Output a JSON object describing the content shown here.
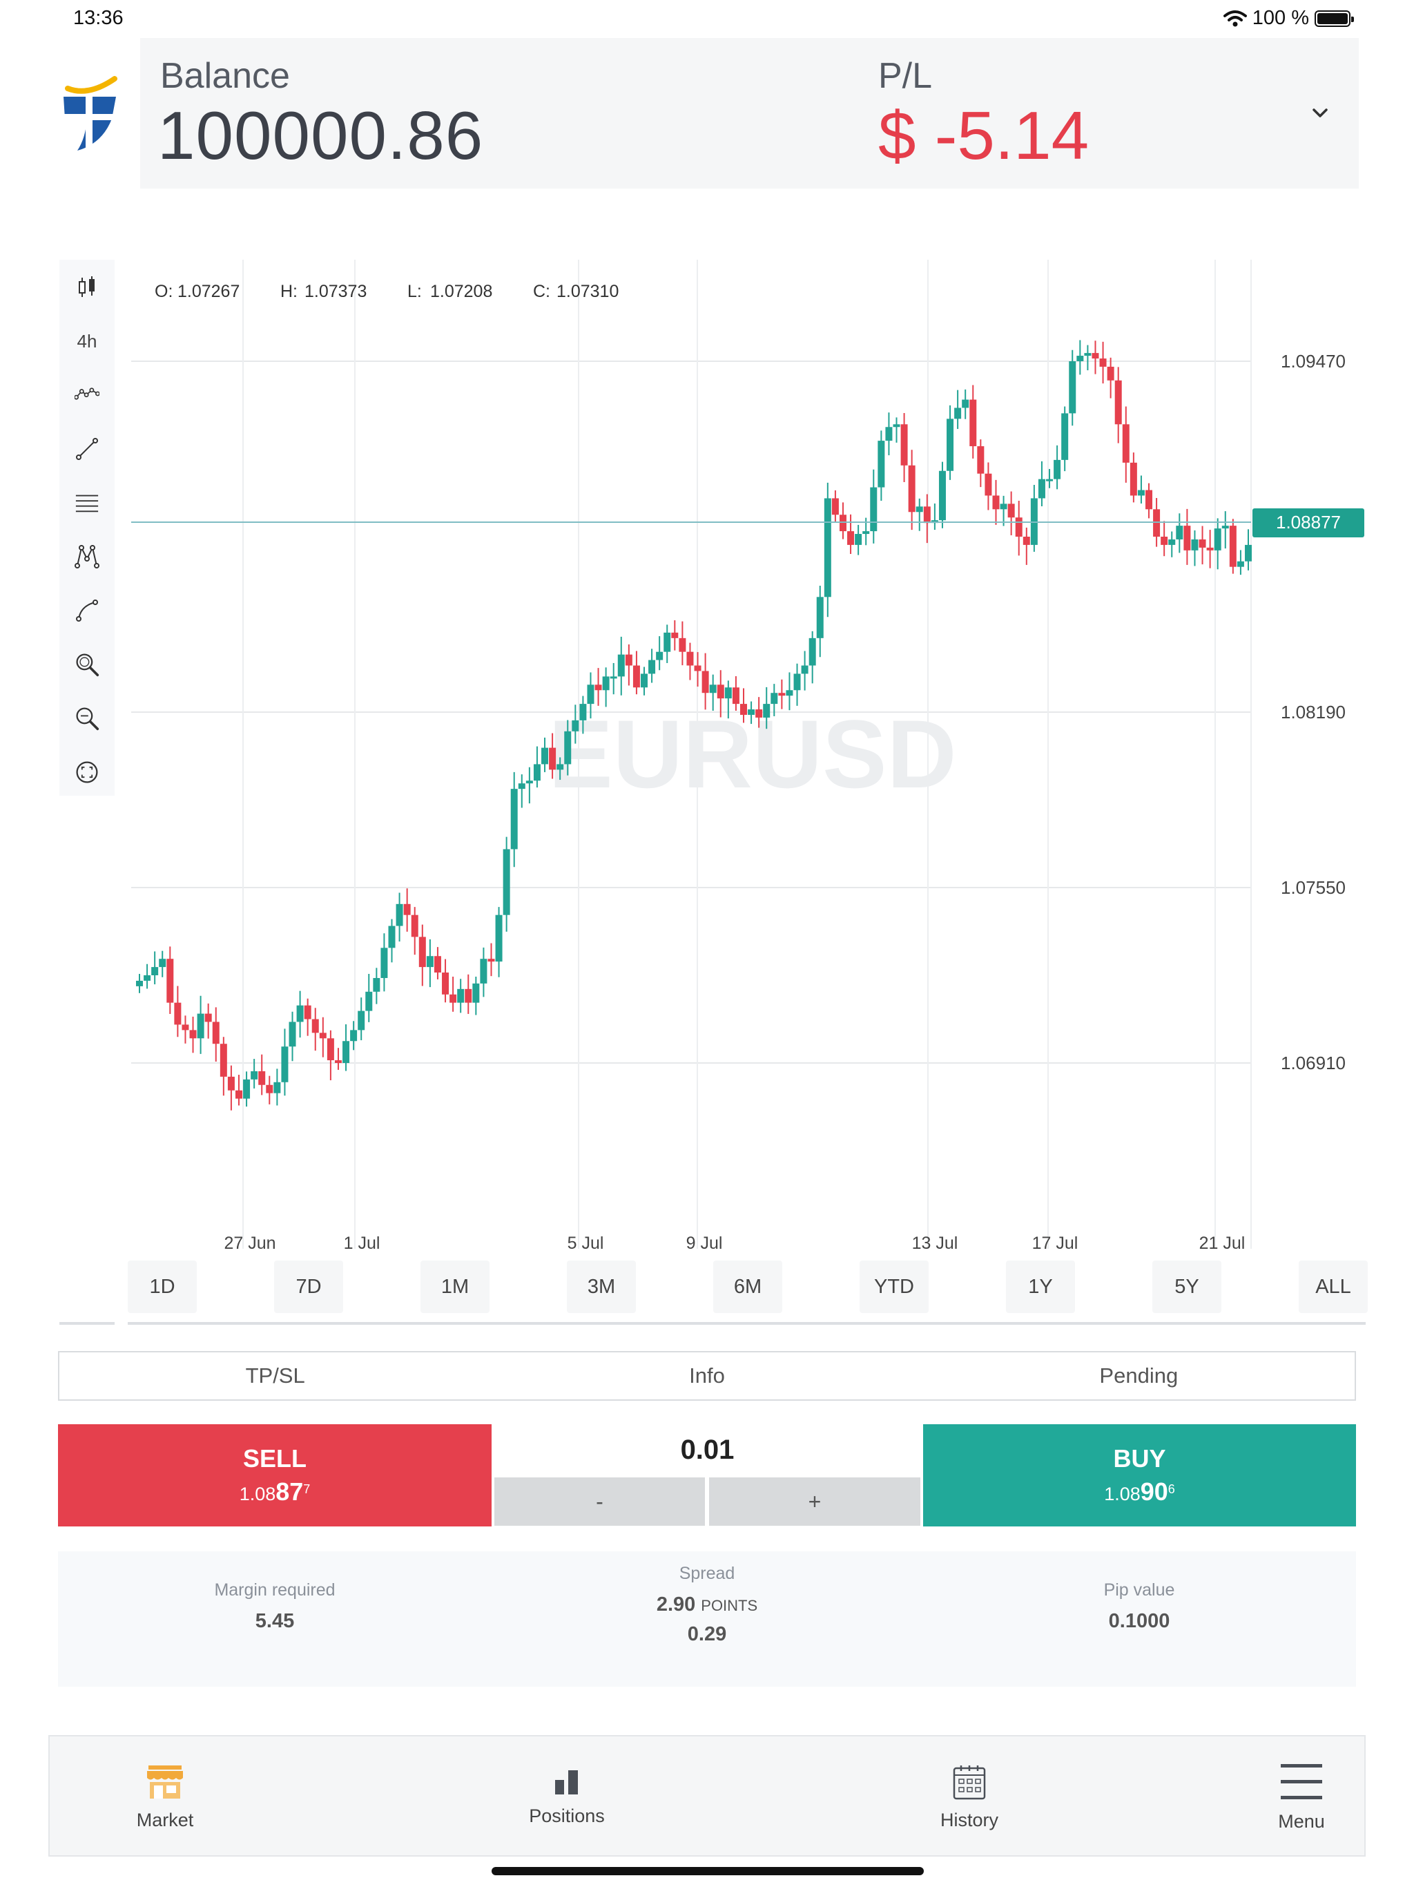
{
  "status_bar": {
    "time": "13:36",
    "battery": "100 %"
  },
  "header": {
    "balance_label": "Balance",
    "balance_value": "100000.86",
    "pl_label": "P/L",
    "pl_value": "$ -5.14",
    "pl_color": "#e53e4b"
  },
  "toolbar": {
    "timeframe": "4h",
    "icons": [
      "candlestick-icon",
      "timeframe-label",
      "indicators-icon",
      "trend-line-icon",
      "fibonacci-icon",
      "pattern-icon",
      "curve-icon",
      "zoom-in-icon",
      "zoom-out-icon",
      "reset-zoom-icon"
    ]
  },
  "ohlc": {
    "o_label": "O:",
    "o_value": "1.07267",
    "h_label": "H:",
    "h_value": "1.07373",
    "l_label": "L:",
    "l_value": "1.07208",
    "c_label": "C:",
    "c_value": "1.07310"
  },
  "chart_data": {
    "type": "candlestick",
    "symbol_watermark": "EURUSD",
    "y_ticks": [
      "1.09470",
      "1.08190",
      "1.07550",
      "1.06910"
    ],
    "x_ticks": [
      "27 Jun",
      "1 Jul",
      "5 Jul",
      "9 Jul",
      "13 Jul",
      "17 Jul",
      "21 Jul"
    ],
    "current_price": "1.08877",
    "grid": true,
    "up_color": "#22a394",
    "down_color": "#e5404d"
  },
  "range_tabs": [
    "1D",
    "7D",
    "1M",
    "3M",
    "6M",
    "YTD",
    "1Y",
    "5Y",
    "ALL"
  ],
  "order_tabs": [
    "TP/SL",
    "Info",
    "Pending"
  ],
  "trade": {
    "sell_label": "SELL",
    "sell_price_prefix": "1.08",
    "sell_price_big": "87",
    "sell_price_sup": "7",
    "buy_label": "BUY",
    "buy_price_prefix": "1.08",
    "buy_price_big": "90",
    "buy_price_sup": "6",
    "quantity": "0.01",
    "minus_label": "-",
    "plus_label": "+"
  },
  "info": {
    "margin_label": "Margin required",
    "margin_value": "5.45",
    "spread_label": "Spread",
    "spread_value": "2.90",
    "spread_unit": "POINTS",
    "spread_pips": "0.29",
    "pip_label": "Pip value",
    "pip_value": "0.1000"
  },
  "nav": {
    "market": "Market",
    "positions": "Positions",
    "history": "History",
    "menu": "Menu"
  }
}
